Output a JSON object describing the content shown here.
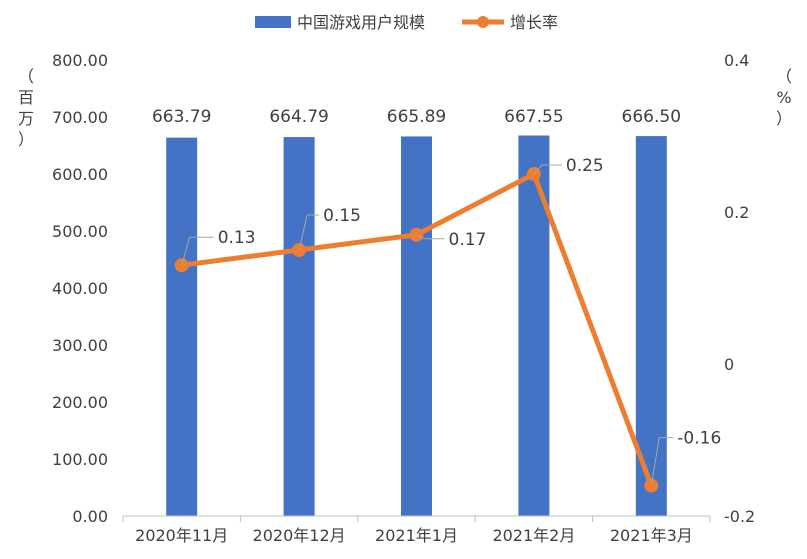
{
  "chart_data": {
    "type": "bar",
    "categories": [
      "2020年11月",
      "2020年12月",
      "2021年1月",
      "2021年2月",
      "2021年3月"
    ],
    "series": [
      {
        "name": "中国游戏用户规模",
        "type": "bar",
        "axis": "left",
        "color": "#4472C4",
        "values": [
          663.79,
          664.79,
          665.89,
          667.55,
          666.5
        ],
        "labels": [
          "663.79",
          "664.79",
          "665.89",
          "667.55",
          "666.50"
        ]
      },
      {
        "name": "增长率",
        "type": "line",
        "axis": "right",
        "color": "#ED7D31",
        "values": [
          0.13,
          0.15,
          0.17,
          0.25,
          -0.16
        ],
        "labels": [
          "0.13",
          "0.15",
          "0.17",
          "0.25",
          "-0.16"
        ]
      }
    ],
    "y_left": {
      "label": "（百万）",
      "ylim": [
        0,
        800
      ],
      "ticks": [
        0,
        100,
        200,
        300,
        400,
        500,
        600,
        700,
        800
      ],
      "tick_labels": [
        "0.00",
        "100.00",
        "200.00",
        "300.00",
        "400.00",
        "500.00",
        "600.00",
        "700.00",
        "800.00"
      ]
    },
    "y_right": {
      "label": "（%）",
      "ylim": [
        -0.2,
        0.4
      ],
      "ticks": [
        -0.2,
        0,
        0.2,
        0.4
      ],
      "tick_labels": [
        "-0.2",
        "0",
        "0.2",
        "0.4"
      ]
    },
    "legend": {
      "position": "top-center",
      "items": [
        "中国游戏用户规模",
        "增长率"
      ]
    },
    "grid": false
  }
}
